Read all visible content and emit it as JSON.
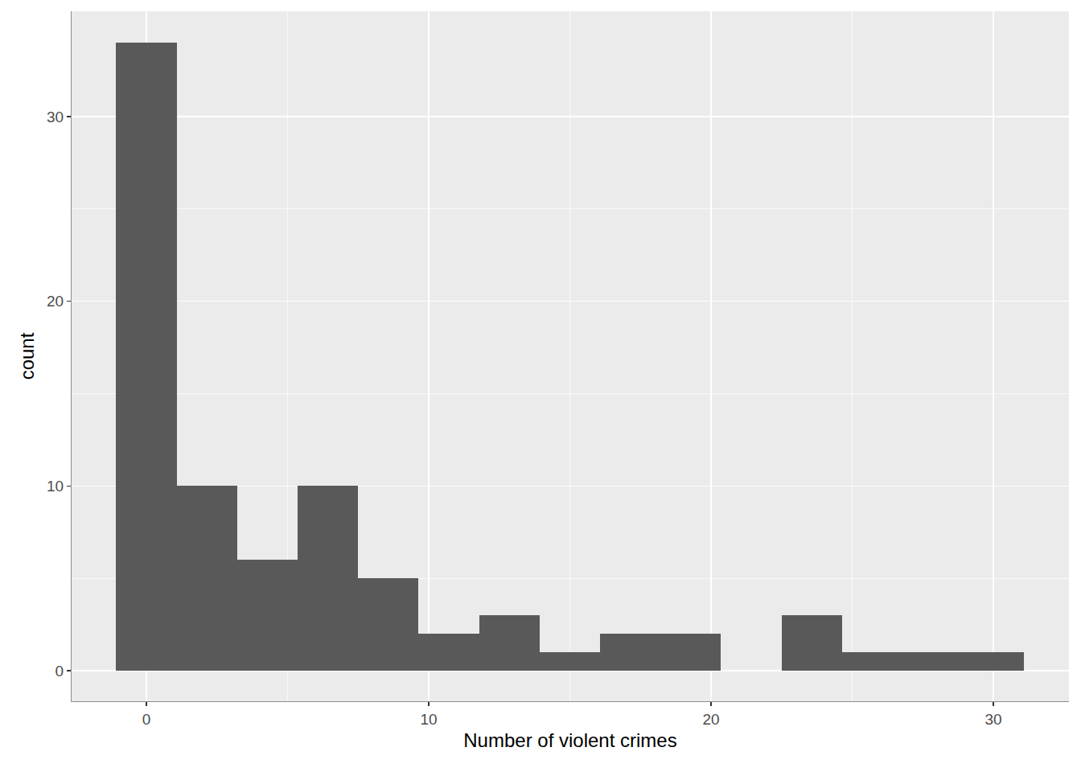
{
  "chart_data": {
    "type": "histogram",
    "x_label": "Number of violent crimes",
    "y_label": "count",
    "bins": [
      -1.071,
      1.071,
      3.214,
      5.357,
      7.5,
      9.643,
      11.786,
      13.929,
      16.071,
      18.214,
      20.357,
      22.5,
      24.643,
      26.786,
      28.929,
      31.071
    ],
    "values": [
      34,
      10,
      6,
      10,
      5,
      2,
      3,
      1,
      2,
      2,
      0,
      3,
      1,
      1,
      1
    ],
    "color": "#595959",
    "xlim": [
      -2.65,
      32.68
    ],
    "xticks": [
      0,
      10,
      20,
      30
    ],
    "ylim": [
      -1.65,
      35.7
    ],
    "yticks": [
      0,
      10,
      20,
      30
    ],
    "grid": true
  }
}
